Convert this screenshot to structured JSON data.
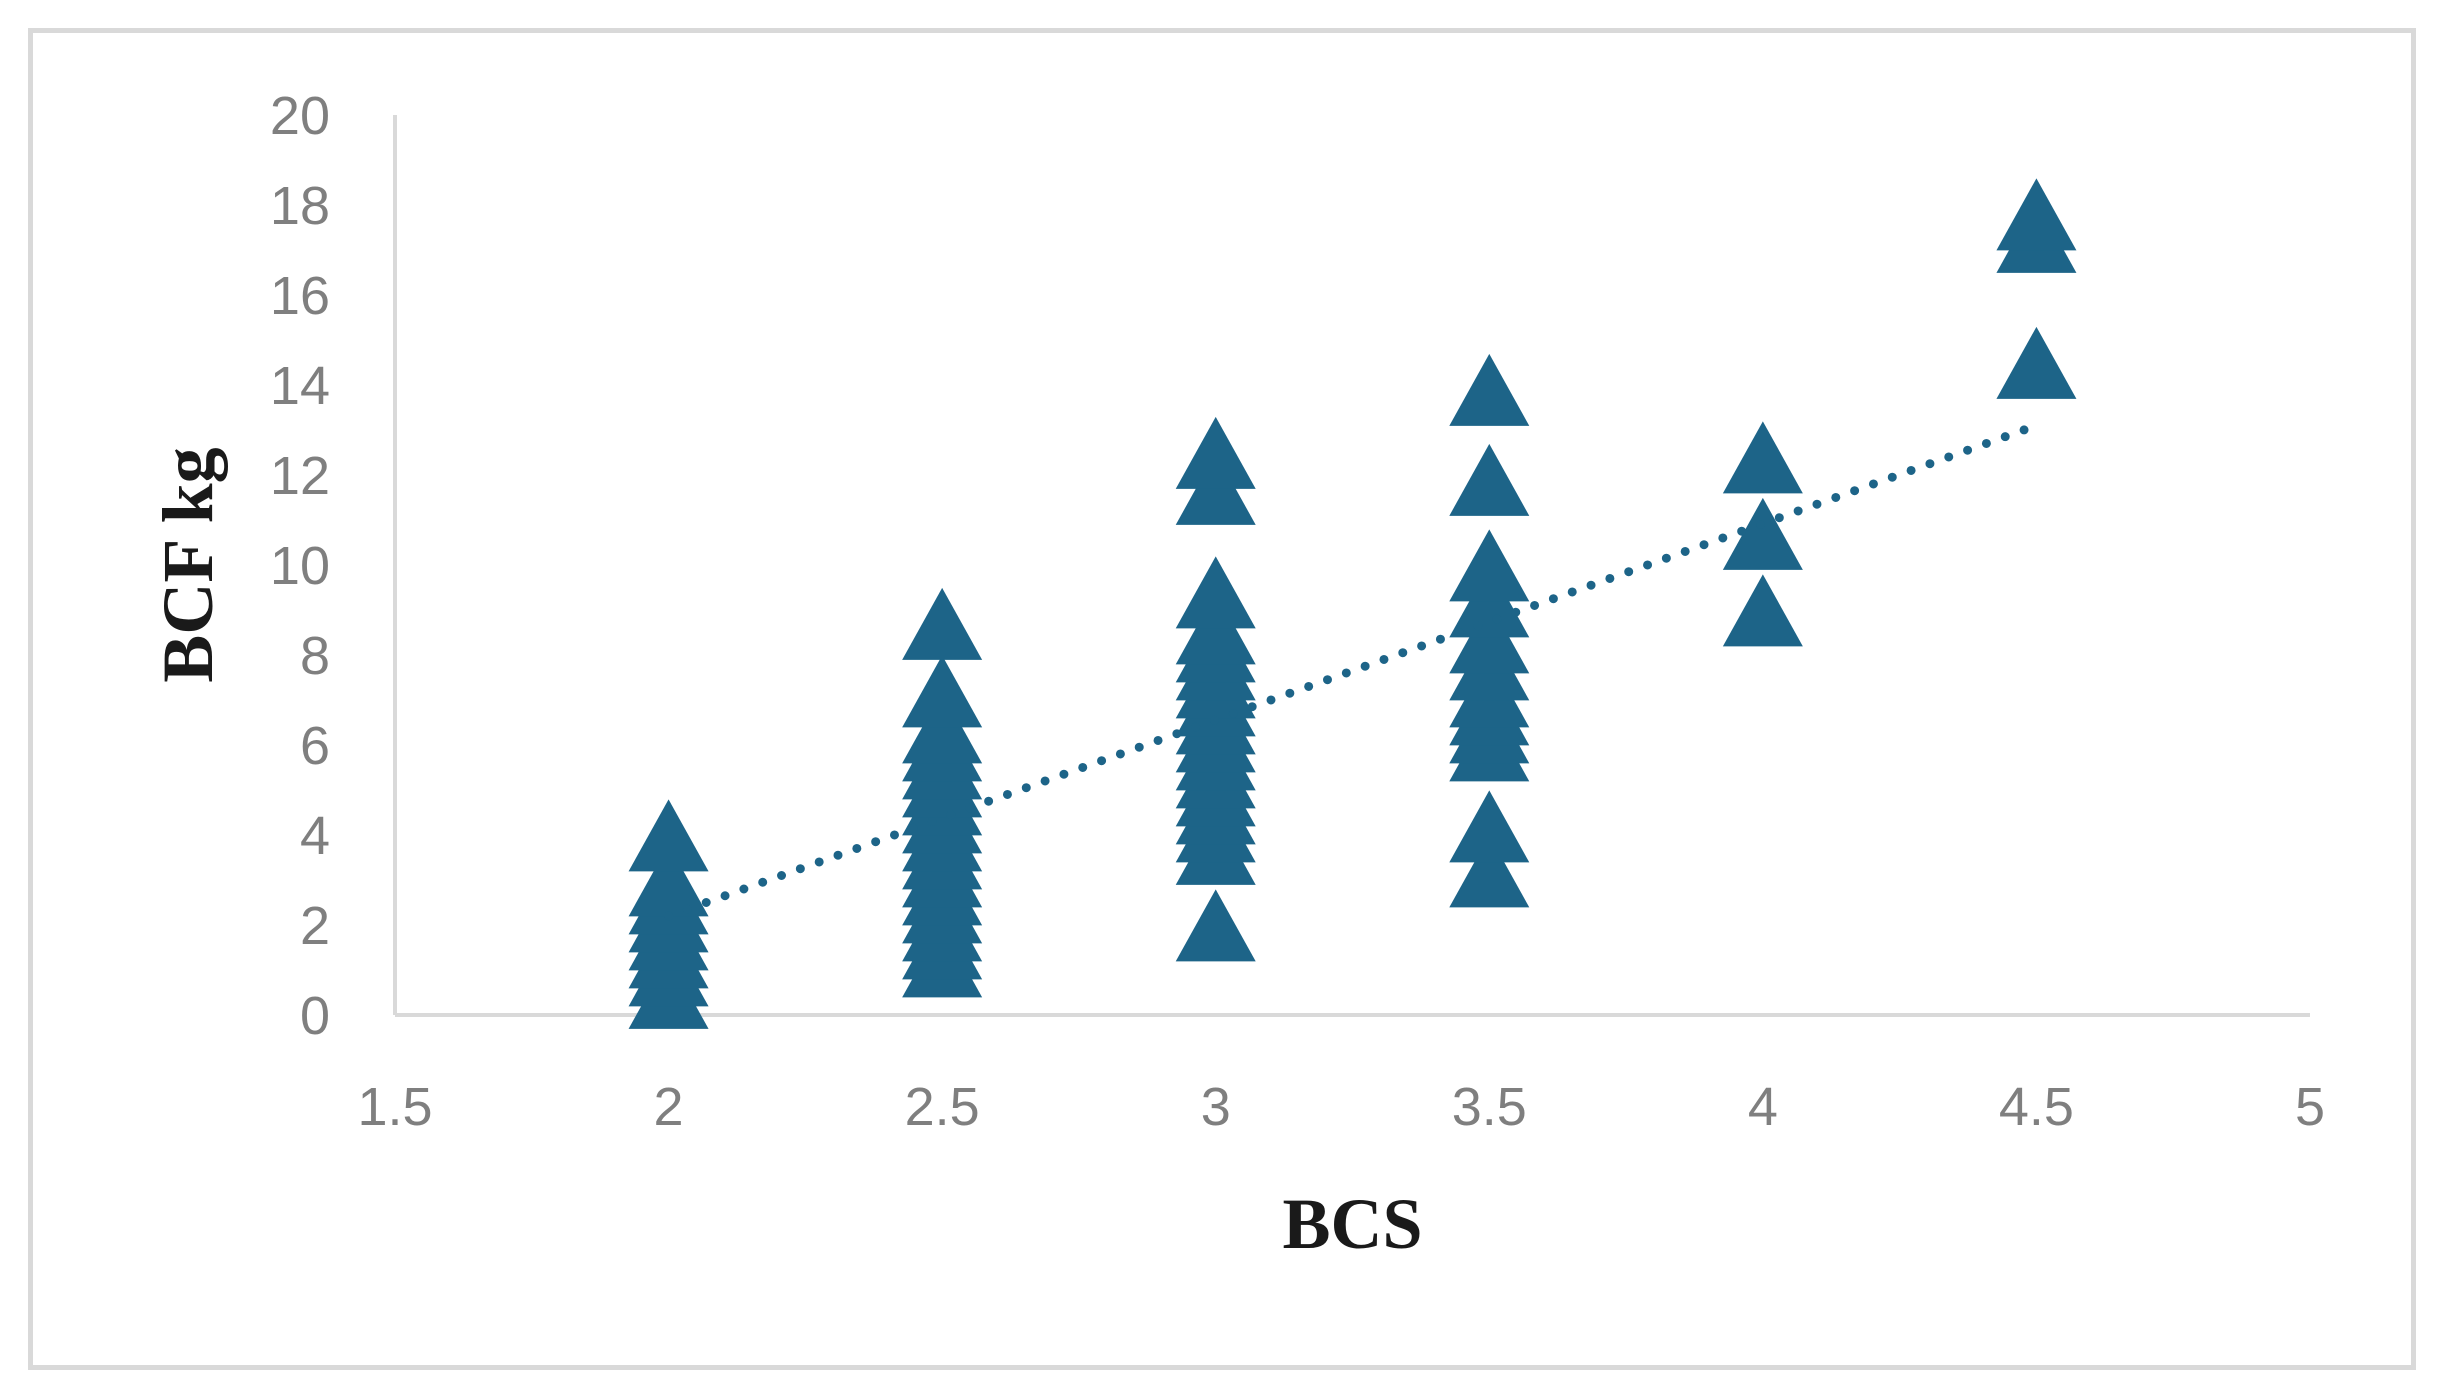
{
  "chart_data": {
    "type": "scatter",
    "xlabel": "BCS",
    "ylabel": "BCF kg",
    "xlim": [
      1.5,
      5
    ],
    "ylim": [
      0,
      20
    ],
    "x_ticks": [
      "1.5",
      "2",
      "2.5",
      "3",
      "3.5",
      "4",
      "4.5",
      "5"
    ],
    "y_ticks": [
      "0",
      "2",
      "4",
      "6",
      "8",
      "10",
      "12",
      "14",
      "16",
      "18",
      "20"
    ],
    "grid": false,
    "legend": "none",
    "marker": "triangle",
    "color": "#1d6488",
    "series": [
      {
        "points": [
          [
            2,
            0.3
          ],
          [
            2,
            0.8
          ],
          [
            2,
            1.2
          ],
          [
            2,
            1.6
          ],
          [
            2,
            2.0
          ],
          [
            2,
            2.4
          ],
          [
            2,
            2.8
          ],
          [
            2,
            3.8
          ],
          [
            2.5,
            1.0
          ],
          [
            2.5,
            1.4
          ],
          [
            2.5,
            1.8
          ],
          [
            2.5,
            2.2
          ],
          [
            2.5,
            2.6
          ],
          [
            2.5,
            3.0
          ],
          [
            2.5,
            3.4
          ],
          [
            2.5,
            3.8
          ],
          [
            2.5,
            4.2
          ],
          [
            2.5,
            4.6
          ],
          [
            2.5,
            5.0
          ],
          [
            2.5,
            5.4
          ],
          [
            2.5,
            5.8
          ],
          [
            2.5,
            6.2
          ],
          [
            2.5,
            7.0
          ],
          [
            2.5,
            8.5
          ],
          [
            3,
            1.8
          ],
          [
            3,
            3.5
          ],
          [
            3,
            4.0
          ],
          [
            3,
            4.4
          ],
          [
            3,
            4.8
          ],
          [
            3,
            5.2
          ],
          [
            3,
            5.6
          ],
          [
            3,
            6.0
          ],
          [
            3,
            6.4
          ],
          [
            3,
            6.8
          ],
          [
            3,
            7.2
          ],
          [
            3,
            7.6
          ],
          [
            3,
            8.0
          ],
          [
            3,
            8.4
          ],
          [
            3,
            9.2
          ],
          [
            3,
            11.5
          ],
          [
            3,
            12.3
          ],
          [
            3.5,
            3.0
          ],
          [
            3.5,
            4.0
          ],
          [
            3.5,
            5.8
          ],
          [
            3.5,
            6.2
          ],
          [
            3.5,
            6.6
          ],
          [
            3.5,
            7.0
          ],
          [
            3.5,
            7.6
          ],
          [
            3.5,
            8.2
          ],
          [
            3.5,
            9.0
          ],
          [
            3.5,
            9.8
          ],
          [
            3.5,
            11.7
          ],
          [
            3.5,
            13.7
          ],
          [
            4,
            8.8
          ],
          [
            4,
            10.5
          ],
          [
            4,
            12.2
          ],
          [
            4.5,
            14.3
          ],
          [
            4.5,
            17.1
          ],
          [
            4.5,
            17.6
          ]
        ]
      }
    ],
    "trendline": {
      "style": "dotted",
      "from": [
        2,
        2.2
      ],
      "to": [
        4.5,
        13.1
      ]
    }
  }
}
